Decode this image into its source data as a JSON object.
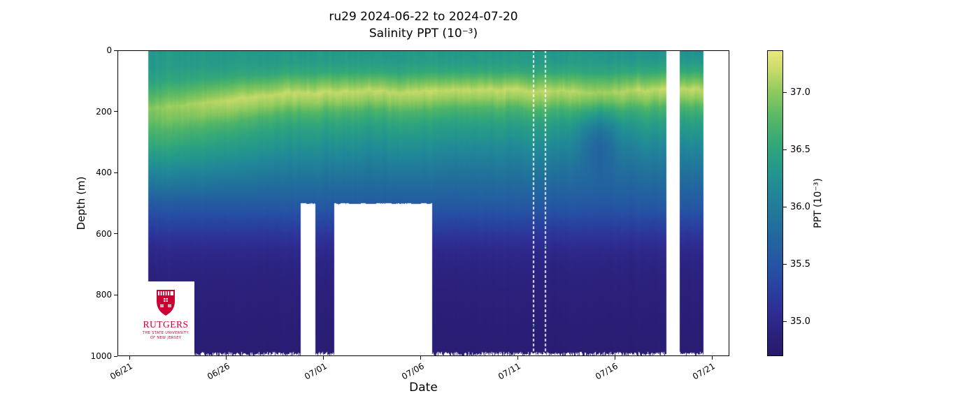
{
  "figure": {
    "title_line1": "ru29 2024-06-22 to 2024-07-20",
    "title_line2": "Salinity PPT (10⁻³)"
  },
  "axes": {
    "xlabel": "Date",
    "ylabel": "Depth (m)"
  },
  "colorbar_label": "PPT (10⁻³)",
  "logo": {
    "wordmark": "RUTGERS",
    "tagline_line1": "THE STATE UNIVERSITY",
    "tagline_line2": "OF NEW JERSEY",
    "brand_color": "#cc0033"
  },
  "chart_data": {
    "type": "heatmap",
    "title": "ru29 2024-06-22 to 2024-07-20",
    "subtitle": "Salinity PPT (10⁻³)",
    "xlabel": "Date",
    "ylabel": "Depth (m)",
    "x_tick_labels": [
      "06/21",
      "06/26",
      "07/01",
      "07/06",
      "07/11",
      "07/16",
      "07/21"
    ],
    "x_tick_days": [
      0,
      5,
      10,
      15,
      20,
      25,
      30
    ],
    "y_tick_depths": [
      0,
      200,
      400,
      600,
      800,
      1000
    ],
    "depth_range_m": [
      0,
      1000
    ],
    "data_day_range": [
      0.97,
      29.54
    ],
    "colorbar": {
      "label": "PPT (10⁻³)",
      "tick_values": [
        35.0,
        35.5,
        36.0,
        36.5,
        37.0
      ],
      "vmin": 34.7,
      "vmax": 37.37
    },
    "colormap_name": "haline",
    "colormap_stops": [
      [
        0.0,
        39,
        26,
        106
      ],
      [
        0.08,
        44,
        35,
        128
      ],
      [
        0.15,
        47,
        47,
        150
      ],
      [
        0.22,
        42,
        65,
        160
      ],
      [
        0.3,
        38,
        85,
        164
      ],
      [
        0.38,
        35,
        102,
        160
      ],
      [
        0.46,
        33,
        119,
        155
      ],
      [
        0.54,
        33,
        136,
        153
      ],
      [
        0.62,
        37,
        154,
        139
      ],
      [
        0.7,
        53,
        169,
        121
      ],
      [
        0.78,
        87,
        184,
        102
      ],
      [
        0.86,
        140,
        201,
        94
      ],
      [
        0.93,
        195,
        218,
        105
      ],
      [
        1.0,
        238,
        232,
        126
      ]
    ],
    "mean_profile_depth_ppt": [
      [
        0,
        36.35
      ],
      [
        40,
        36.4
      ],
      [
        70,
        36.55
      ],
      [
        100,
        36.85
      ],
      [
        135,
        37.18
      ],
      [
        165,
        37.02
      ],
      [
        200,
        36.72
      ],
      [
        250,
        36.45
      ],
      [
        300,
        36.28
      ],
      [
        350,
        36.1
      ],
      [
        400,
        35.92
      ],
      [
        450,
        35.75
      ],
      [
        500,
        35.58
      ],
      [
        550,
        35.38
      ],
      [
        600,
        35.18
      ],
      [
        650,
        35.02
      ],
      [
        700,
        34.94
      ],
      [
        800,
        34.86
      ],
      [
        900,
        34.82
      ],
      [
        1000,
        34.8
      ]
    ],
    "salinity_max_depth_by_day": [
      [
        0.97,
        192
      ],
      [
        2,
        185
      ],
      [
        3,
        178
      ],
      [
        4,
        170
      ],
      [
        5,
        161
      ],
      [
        6,
        152
      ],
      [
        7,
        147
      ],
      [
        8,
        142
      ],
      [
        9,
        140
      ],
      [
        10,
        138
      ],
      [
        11,
        136
      ],
      [
        12,
        133
      ],
      [
        13,
        131
      ],
      [
        14,
        136
      ],
      [
        15,
        133
      ],
      [
        16,
        131
      ],
      [
        17,
        128
      ],
      [
        18,
        131
      ],
      [
        19,
        126
      ],
      [
        20,
        129
      ],
      [
        21,
        133
      ],
      [
        22,
        129
      ],
      [
        23,
        134
      ],
      [
        24,
        141
      ],
      [
        25,
        136
      ],
      [
        26,
        130
      ],
      [
        27,
        128
      ],
      [
        28,
        126
      ],
      [
        29.6,
        127
      ]
    ],
    "gaps": [
      {
        "kind": "missing_below_depth",
        "day_start": 8.79,
        "day_end": 9.56,
        "depth_m": 500
      },
      {
        "kind": "missing_below_depth",
        "day_start": 10.55,
        "day_end": 15.59,
        "depth_m": 500
      },
      {
        "kind": "missing_all_depths",
        "day_start": 27.64,
        "day_end": 28.33
      }
    ],
    "sparse_profile_days": [
      20.76,
      21.4
    ],
    "eddy_feature": {
      "day": 24.17,
      "depth_m": 285,
      "ppt_anomaly": -0.42,
      "day_radius": 1.05,
      "depth_radius_m": 105
    }
  }
}
